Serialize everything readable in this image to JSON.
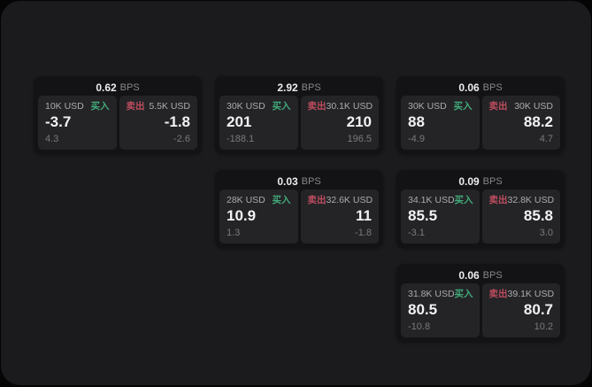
{
  "app": {
    "unit_label": "BPS",
    "buy_label": "买入",
    "sell_label": "卖出"
  },
  "colors": {
    "buy_green": "#41aa79",
    "sell_red": "#bf4d5f",
    "panel_bg": "#1b1b1d",
    "card_bg": "#131315",
    "tile_bg": "#242427"
  },
  "cards": [
    {
      "bps": "0.62",
      "buy": {
        "amount": "10K USD",
        "price": "-3.7",
        "change": "4.3"
      },
      "sell": {
        "amount": "5.5K USD",
        "price": "-1.8",
        "change": "-2.6"
      }
    },
    {
      "bps": "2.92",
      "buy": {
        "amount": "30K USD",
        "price": "201",
        "change": "-188.1"
      },
      "sell": {
        "amount": "30.1K USD",
        "price": "210",
        "change": "196.5"
      }
    },
    {
      "bps": "0.06",
      "buy": {
        "amount": "30K USD",
        "price": "88",
        "change": "-4.9"
      },
      "sell": {
        "amount": "30K USD",
        "price": "88.2",
        "change": "4.7"
      }
    },
    {
      "bps": "0.03",
      "buy": {
        "amount": "28K USD",
        "price": "10.9",
        "change": "1.3"
      },
      "sell": {
        "amount": "32.6K USD",
        "price": "11",
        "change": "-1.8"
      }
    },
    {
      "bps": "0.09",
      "buy": {
        "amount": "34.1K USD",
        "price": "85.5",
        "change": "-3.1"
      },
      "sell": {
        "amount": "32.8K USD",
        "price": "85.8",
        "change": "3.0"
      }
    },
    {
      "bps": "0.06",
      "buy": {
        "amount": "31.8K USD",
        "price": "80.5",
        "change": "-10.8"
      },
      "sell": {
        "amount": "39.1K USD",
        "price": "80.7",
        "change": "10.2"
      }
    }
  ]
}
